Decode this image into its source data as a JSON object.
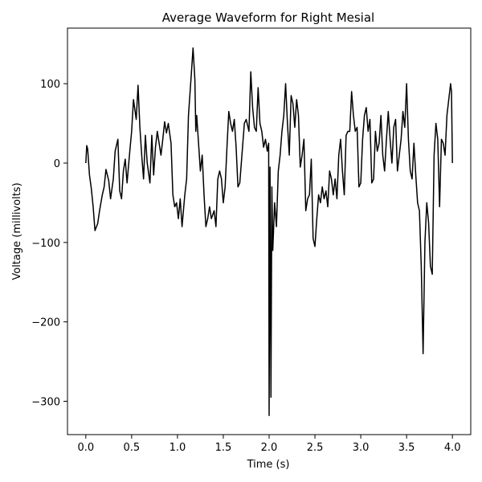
{
  "chart_data": {
    "type": "line",
    "title": "Average Waveform for Right Mesial",
    "xlabel": "Time (s)",
    "ylabel": "Voltage (millivolts)",
    "xlim": [
      -0.2,
      4.2
    ],
    "ylim": [
      -342,
      170
    ],
    "x_ticks": [
      0.0,
      0.5,
      1.0,
      1.5,
      2.0,
      2.5,
      3.0,
      3.5,
      4.0
    ],
    "x_tick_labels": [
      "0.0",
      "0.5",
      "1.0",
      "1.5",
      "2.0",
      "2.5",
      "3.0",
      "3.5",
      "4.0"
    ],
    "y_ticks": [
      100,
      0,
      -100,
      -200,
      -300
    ],
    "y_tick_labels": [
      "100",
      "0",
      "−100",
      "−200",
      "−300"
    ],
    "grid": false,
    "line_color": "#000000",
    "series": [
      {
        "x": [
          0.0,
          0.01,
          0.02,
          0.04,
          0.06,
          0.08,
          0.1,
          0.13,
          0.15,
          0.18,
          0.2,
          0.22,
          0.25,
          0.27,
          0.3,
          0.32,
          0.35,
          0.37,
          0.39,
          0.41,
          0.43,
          0.45,
          0.48,
          0.5,
          0.52,
          0.55,
          0.57,
          0.59,
          0.61,
          0.63,
          0.65,
          0.67,
          0.7,
          0.72,
          0.74,
          0.76,
          0.78,
          0.8,
          0.82,
          0.84,
          0.86,
          0.88,
          0.9,
          0.93,
          0.95,
          0.97,
          0.99,
          1.01,
          1.03,
          1.05,
          1.08,
          1.1,
          1.12,
          1.15,
          1.17,
          1.19,
          1.2,
          1.21,
          1.23,
          1.25,
          1.27,
          1.29,
          1.31,
          1.33,
          1.35,
          1.37,
          1.4,
          1.42,
          1.44,
          1.46,
          1.48,
          1.5,
          1.52,
          1.54,
          1.56,
          1.58,
          1.6,
          1.62,
          1.64,
          1.66,
          1.68,
          1.71,
          1.73,
          1.75,
          1.78,
          1.8,
          1.82,
          1.84,
          1.86,
          1.88,
          1.9,
          1.92,
          1.94,
          1.96,
          1.98,
          1.995,
          2.0,
          2.01,
          2.02,
          2.03,
          2.04,
          2.05,
          2.06,
          2.08,
          2.1,
          2.12,
          2.14,
          2.16,
          2.18,
          2.2,
          2.22,
          2.24,
          2.26,
          2.28,
          2.3,
          2.32,
          2.34,
          2.36,
          2.38,
          2.4,
          2.42,
          2.44,
          2.46,
          2.48,
          2.5,
          2.52,
          2.54,
          2.56,
          2.58,
          2.6,
          2.62,
          2.64,
          2.66,
          2.68,
          2.7,
          2.72,
          2.74,
          2.76,
          2.78,
          2.8,
          2.82,
          2.84,
          2.86,
          2.88,
          2.9,
          2.92,
          2.94,
          2.96,
          2.98,
          3.0,
          3.02,
          3.04,
          3.06,
          3.08,
          3.1,
          3.12,
          3.14,
          3.16,
          3.18,
          3.2,
          3.22,
          3.24,
          3.26,
          3.28,
          3.3,
          3.32,
          3.34,
          3.36,
          3.38,
          3.4,
          3.42,
          3.44,
          3.46,
          3.48,
          3.5,
          3.52,
          3.54,
          3.56,
          3.58,
          3.6,
          3.62,
          3.64,
          3.66,
          3.68,
          3.7,
          3.72,
          3.74,
          3.76,
          3.78,
          3.8,
          3.82,
          3.84,
          3.86,
          3.88,
          3.9,
          3.92,
          3.94,
          3.96,
          3.98,
          3.99,
          4.0
        ],
        "y": [
          0,
          22,
          18,
          -15,
          -32,
          -55,
          -85,
          -76,
          -60,
          -40,
          -30,
          -8,
          -22,
          -45,
          -20,
          15,
          30,
          -35,
          -45,
          -10,
          5,
          -25,
          15,
          40,
          80,
          55,
          98,
          45,
          10,
          -20,
          35,
          0,
          -25,
          35,
          -15,
          20,
          40,
          25,
          10,
          30,
          52,
          38,
          50,
          25,
          -40,
          -55,
          -50,
          -70,
          -45,
          -80,
          -40,
          -20,
          60,
          110,
          145,
          105,
          40,
          60,
          25,
          -10,
          10,
          -40,
          -80,
          -70,
          -55,
          -70,
          -60,
          -80,
          -20,
          -10,
          -20,
          -50,
          -30,
          20,
          65,
          50,
          40,
          55,
          20,
          -30,
          -25,
          20,
          50,
          55,
          40,
          115,
          70,
          45,
          40,
          95,
          50,
          40,
          20,
          30,
          15,
          25,
          -318,
          -5,
          -295,
          -30,
          -110,
          -80,
          -50,
          -80,
          -10,
          10,
          40,
          60,
          100,
          50,
          10,
          85,
          75,
          45,
          80,
          60,
          -5,
          10,
          30,
          -60,
          -45,
          -40,
          5,
          -95,
          -105,
          -70,
          -40,
          -50,
          -30,
          -45,
          -35,
          -55,
          -10,
          -20,
          -40,
          -20,
          -45,
          10,
          30,
          -10,
          -40,
          35,
          40,
          40,
          90,
          60,
          40,
          45,
          -30,
          -25,
          30,
          60,
          70,
          40,
          55,
          -25,
          -20,
          40,
          15,
          25,
          60,
          10,
          -10,
          30,
          65,
          30,
          0,
          45,
          55,
          -10,
          10,
          30,
          65,
          45,
          100,
          30,
          -10,
          -20,
          25,
          -15,
          -50,
          -60,
          -130,
          -240,
          -100,
          -50,
          -75,
          -130,
          -140,
          10,
          50,
          30,
          -55,
          30,
          25,
          10,
          60,
          80,
          100,
          90,
          0
        ]
      }
    ]
  }
}
